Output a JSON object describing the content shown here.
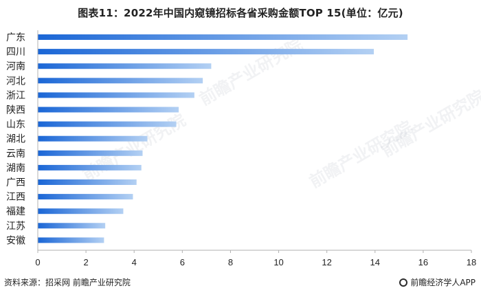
{
  "title": "图表11：2022年中国内窥镜招标各省采购金额TOP 15(单位：亿元)",
  "source": "资料来源：招采网 前瞻产业研究院",
  "brand": "前瞻经济学人APP",
  "watermark_text": "前瞻产业研究院",
  "colors": {
    "bar_start": "#1a66d6",
    "bar_end": "#b3d0f3",
    "axis": "#b0b0b0",
    "text": "#222222"
  },
  "chart_data": {
    "type": "bar",
    "orientation": "horizontal",
    "categories": [
      "广东",
      "四川",
      "河南",
      "河北",
      "浙江",
      "陕西",
      "山东",
      "湖北",
      "云南",
      "湖南",
      "广西",
      "江西",
      "福建",
      "江苏",
      "安徽"
    ],
    "values": [
      15.35,
      13.95,
      7.2,
      6.85,
      6.5,
      5.85,
      5.75,
      4.55,
      4.35,
      4.3,
      4.1,
      3.95,
      3.55,
      2.8,
      2.75
    ],
    "xlim": [
      0,
      18
    ],
    "xticks": [
      0,
      2,
      4,
      6,
      8,
      10,
      12,
      14,
      16,
      18
    ],
    "grid": false,
    "legend": "none"
  }
}
